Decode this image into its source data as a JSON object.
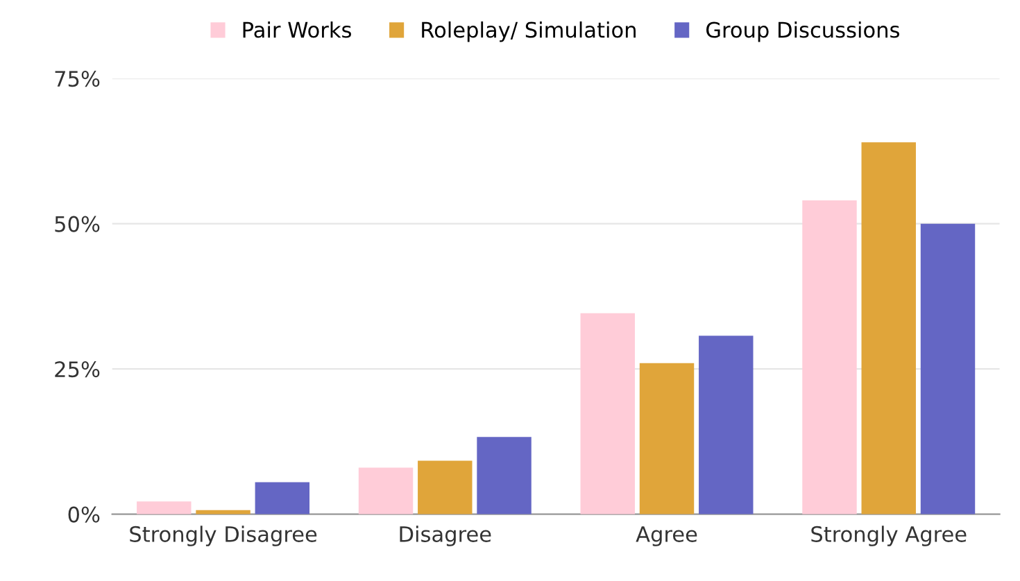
{
  "chart_data": {
    "type": "bar",
    "categories": [
      "Strongly Disagree",
      "Disagree",
      "Agree",
      "Strongly Agree"
    ],
    "series": [
      {
        "name": "Pair Works",
        "color": "#ffccd8",
        "values": [
          2.2,
          8,
          34.6,
          54
        ]
      },
      {
        "name": "Roleplay/ Simulation",
        "color": "#e0a53a",
        "values": [
          0.7,
          9.2,
          26,
          64
        ]
      },
      {
        "name": "Group Discussions",
        "color": "#6466c4",
        "values": [
          5.5,
          13.3,
          30.7,
          50
        ]
      }
    ],
    "ylim": [
      0,
      75
    ],
    "yticks": [
      {
        "value": 0,
        "label": "0%"
      },
      {
        "value": 25,
        "label": "25%"
      },
      {
        "value": 50,
        "label": "50%"
      },
      {
        "value": 75,
        "label": "75%"
      }
    ],
    "grid": "y",
    "legend": "top"
  }
}
